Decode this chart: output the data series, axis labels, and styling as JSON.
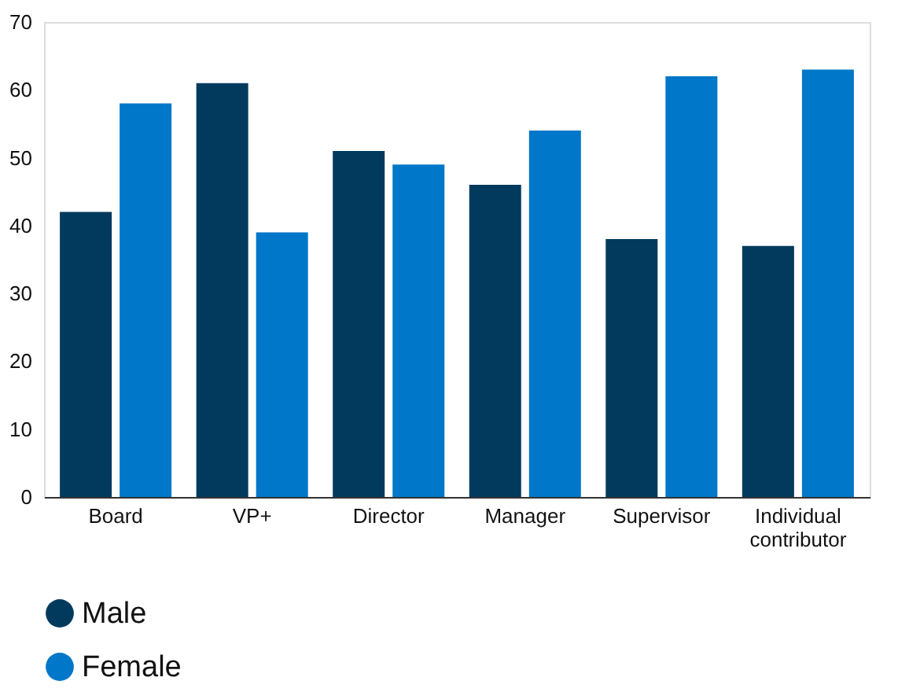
{
  "chart_data": {
    "type": "bar",
    "categories": [
      "Board",
      "VP+",
      "Director",
      "Manager",
      "Supervisor",
      "Individual contributor"
    ],
    "series": [
      {
        "name": "Male",
        "color": "#023a5e",
        "values": [
          42,
          61,
          51,
          46,
          38,
          37
        ]
      },
      {
        "name": "Female",
        "color": "#0077c8",
        "values": [
          58,
          39,
          49,
          54,
          62,
          63
        ]
      }
    ],
    "ylim": [
      0,
      70
    ],
    "yticks": [
      0,
      10,
      20,
      30,
      40,
      50,
      60,
      70
    ],
    "grid": false,
    "legend": "bottom left"
  }
}
